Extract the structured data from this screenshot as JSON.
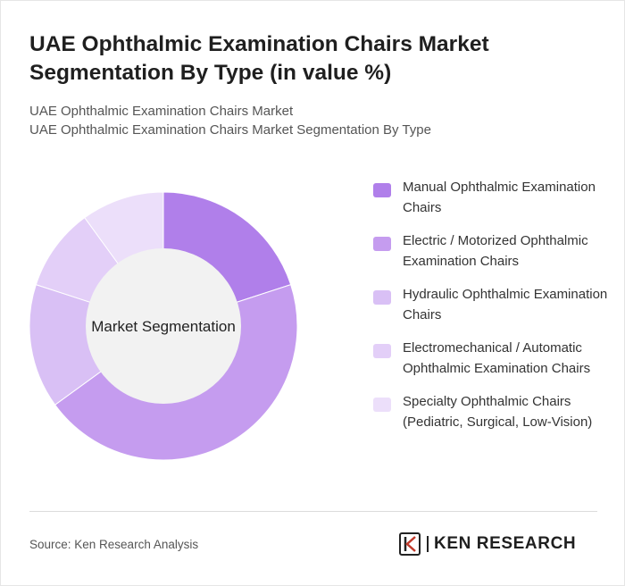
{
  "header": {
    "title": "UAE Ophthalmic Examination Chairs Market Segmentation By Type (in value %)",
    "subtitle_line1": "UAE Ophthalmic Examination Chairs Market",
    "subtitle_line2": "UAE Ophthalmic Examination Chairs Market Segmentation By Type"
  },
  "chart_data": {
    "type": "pie",
    "center_label": "Market Segmentation",
    "categories": [
      "Manual Ophthalmic Examination Chairs",
      "Electric / Motorized Ophthalmic Examination Chairs",
      "Hydraulic Ophthalmic Examination Chairs",
      "Electromechanical / Automatic Ophthalmic Examination Chairs",
      "Specialty Ophthalmic Chairs (Pediatric, Surgical, Low-Vision)"
    ],
    "values": [
      20,
      45,
      15,
      10,
      10
    ],
    "colors": [
      "#b07fea",
      "#c59cef",
      "#d9c0f5",
      "#e3cff8",
      "#ecdffa"
    ],
    "legend_position": "right"
  },
  "footer": {
    "source": "Source: Ken Research Analysis",
    "brand": "KEN RESEARCH"
  }
}
